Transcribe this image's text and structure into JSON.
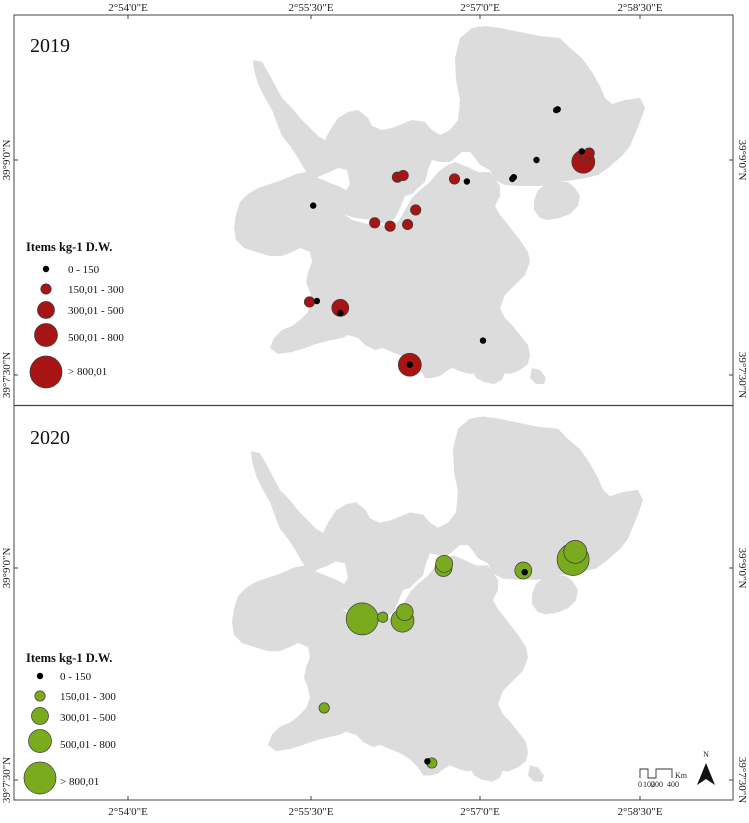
{
  "ticks": {
    "top": [
      "2°54'0\"E",
      "2°55'30\"E",
      "2°57'0\"E",
      "2°58'30\"E"
    ],
    "bottom": [
      "2°54'0\"E",
      "2°55'30\"E",
      "2°57'0\"E",
      "2°58'30\"E"
    ],
    "left": [
      "39°9'0\"N",
      "39°7'30\"N",
      "39°9'0\"N",
      "39°7'30\"N"
    ],
    "right": [
      "39°9'0\"N",
      "39°7'30\"N",
      "39°9'0\"N",
      "39°7'30\"N"
    ]
  },
  "panels": [
    {
      "year": "2019",
      "color": "#a81414",
      "legend": {
        "title": "Items kg-1 D.W.",
        "classes": [
          "0 - 150",
          "150,01 - 300",
          "300,01 - 500",
          "500,01 - 800",
          "> 800,01"
        ]
      },
      "points": [
        {
          "lon": 2.9585,
          "lat": 39.1558,
          "class": 0
        },
        {
          "lon": 2.9587,
          "lat": 39.1559,
          "class": 0
        },
        {
          "lon": 2.9525,
          "lat": 39.1478,
          "class": 0
        },
        {
          "lon": 2.9527,
          "lat": 39.148,
          "class": 0
        },
        {
          "lon": 2.9463,
          "lat": 39.1475,
          "class": 0
        },
        {
          "lon": 2.9558,
          "lat": 39.15,
          "class": 0
        },
        {
          "lon": 2.962,
          "lat": 39.151,
          "class": 0
        },
        {
          "lon": 2.9253,
          "lat": 39.1447,
          "class": 0
        },
        {
          "lon": 2.9258,
          "lat": 39.1336,
          "class": 0
        },
        {
          "lon": 2.929,
          "lat": 39.1322,
          "class": 0
        },
        {
          "lon": 2.9385,
          "lat": 39.1262,
          "class": 0
        },
        {
          "lon": 2.9485,
          "lat": 39.129,
          "class": 0
        },
        {
          "lon": 2.9368,
          "lat": 39.148,
          "class": 1
        },
        {
          "lon": 2.9376,
          "lat": 39.1482,
          "class": 1
        },
        {
          "lon": 2.9446,
          "lat": 39.1478,
          "class": 1
        },
        {
          "lon": 2.9393,
          "lat": 39.1442,
          "class": 1
        },
        {
          "lon": 2.9382,
          "lat": 39.1425,
          "class": 1
        },
        {
          "lon": 2.9358,
          "lat": 39.1423,
          "class": 1
        },
        {
          "lon": 2.9337,
          "lat": 39.1427,
          "class": 1
        },
        {
          "lon": 2.9248,
          "lat": 39.1335,
          "class": 1
        },
        {
          "lon": 2.9625,
          "lat": 39.1505,
          "class": 1
        },
        {
          "lon": 2.963,
          "lat": 39.1508,
          "class": 1
        },
        {
          "lon": 2.929,
          "lat": 39.1328,
          "class": 2
        },
        {
          "lon": 2.9622,
          "lat": 39.1498,
          "class": 3
        },
        {
          "lon": 2.9385,
          "lat": 39.1262,
          "class": 3
        }
      ]
    },
    {
      "year": "2020",
      "color": "#7aaa1e",
      "legend": {
        "title": "Items kg-1 D.W.",
        "classes": [
          "0 - 150",
          "150,01 - 300",
          "300,01 - 500",
          "500,01 - 800",
          "> 800,01"
        ]
      },
      "points": [
        {
          "lon": 2.932,
          "lat": 39.144,
          "class": 4
        },
        {
          "lon": 2.9348,
          "lat": 39.1442,
          "class": 1
        },
        {
          "lon": 2.9375,
          "lat": 39.1438,
          "class": 3
        },
        {
          "lon": 2.9378,
          "lat": 39.1448,
          "class": 2
        },
        {
          "lon": 2.9431,
          "lat": 39.15,
          "class": 2
        },
        {
          "lon": 2.9432,
          "lat": 39.1505,
          "class": 2
        },
        {
          "lon": 2.954,
          "lat": 39.1497,
          "class": 2
        },
        {
          "lon": 2.9542,
          "lat": 39.1495,
          "class": 0
        },
        {
          "lon": 2.9608,
          "lat": 39.151,
          "class": 4
        },
        {
          "lon": 2.9611,
          "lat": 39.1519,
          "class": 3
        },
        {
          "lon": 2.9268,
          "lat": 39.1335,
          "class": 1
        },
        {
          "lon": 2.9409,
          "lat": 39.1272,
          "class": 0
        },
        {
          "lon": 2.9415,
          "lat": 39.127,
          "class": 1
        }
      ],
      "scalebar": {
        "labels": [
          "0",
          "100",
          "200",
          "400"
        ],
        "unit": "Km"
      },
      "north": "N"
    }
  ]
}
